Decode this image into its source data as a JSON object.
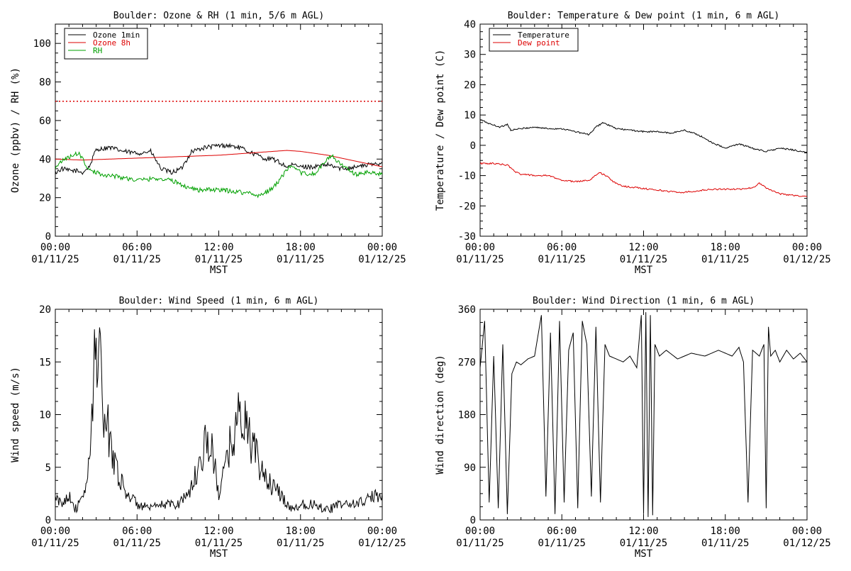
{
  "chart_data": [
    {
      "type": "line",
      "title": "Boulder: Ozone & RH (1 min, 5/6 m AGL)",
      "xlabel": "MST",
      "ylabel": "Ozone (ppbv) / RH (%)",
      "xlim": [
        "2025-01-11 00:00",
        "2025-01-12 00:00"
      ],
      "ylim": [
        0,
        110
      ],
      "xticks": [
        {
          "time": "2025-01-11 00:00",
          "label1": "00:00",
          "label2": "01/11/25"
        },
        {
          "time": "2025-01-11 06:00",
          "label1": "06:00",
          "label2": "01/11/25"
        },
        {
          "time": "2025-01-11 12:00",
          "label1": "12:00",
          "label2": "01/11/25"
        },
        {
          "time": "2025-01-11 18:00",
          "label1": "18:00",
          "label2": "01/11/25"
        },
        {
          "time": "2025-01-12 00:00",
          "label1": "00:00",
          "label2": "01/12/25"
        }
      ],
      "yticks": [
        0,
        20,
        40,
        60,
        80,
        100
      ],
      "legend_position": "top-left",
      "reference_lines": [
        {
          "y": 70,
          "style": "dotted",
          "color": "#dd0000"
        }
      ],
      "series": [
        {
          "name": "Ozone 1min",
          "color": "#000000",
          "x": [
            "2025-01-11 00:00",
            "2025-01-11 00:30",
            "2025-01-11 01:00",
            "2025-01-11 01:30",
            "2025-01-11 02:00",
            "2025-01-11 02:30",
            "2025-01-11 03:00",
            "2025-01-11 04:00",
            "2025-01-11 05:00",
            "2025-01-11 06:00",
            "2025-01-11 07:00",
            "2025-01-11 07:45",
            "2025-01-11 08:30",
            "2025-01-11 09:15",
            "2025-01-11 10:00",
            "2025-01-11 11:00",
            "2025-01-11 12:00",
            "2025-01-11 12:45",
            "2025-01-11 13:30",
            "2025-01-11 14:30",
            "2025-01-11 15:30",
            "2025-01-11 16:00",
            "2025-01-11 16:30",
            "2025-01-11 17:00",
            "2025-01-11 17:30",
            "2025-01-11 18:00",
            "2025-01-11 19:00",
            "2025-01-11 20:00",
            "2025-01-11 21:00",
            "2025-01-11 22:00",
            "2025-01-11 23:00",
            "2025-01-12 00:00"
          ],
          "y": [
            33,
            35,
            34,
            34,
            33,
            36,
            45,
            46,
            44,
            43,
            44,
            35,
            33,
            35,
            44,
            46,
            47,
            47,
            46,
            43,
            40,
            40,
            38,
            36,
            37,
            36,
            36,
            37,
            35,
            36,
            37,
            38
          ]
        },
        {
          "name": "Ozone 8h",
          "color": "#dd0000",
          "x": [
            "2025-01-11 00:00",
            "2025-01-11 02:00",
            "2025-01-11 04:00",
            "2025-01-11 06:00",
            "2025-01-11 08:00",
            "2025-01-11 10:00",
            "2025-01-11 12:00",
            "2025-01-11 14:00",
            "2025-01-11 16:00",
            "2025-01-11 17:00",
            "2025-01-11 18:00",
            "2025-01-11 20:00",
            "2025-01-11 22:00",
            "2025-01-12 00:00"
          ],
          "y": [
            40,
            39.5,
            40,
            40.5,
            41,
            41.5,
            42,
            43,
            44,
            44.5,
            44,
            42,
            39,
            36
          ]
        },
        {
          "name": "RH",
          "color": "#00a000",
          "x": [
            "2025-01-11 00:00",
            "2025-01-11 00:30",
            "2025-01-11 01:15",
            "2025-01-11 01:45",
            "2025-01-11 02:15",
            "2025-01-11 02:30",
            "2025-01-11 03:30",
            "2025-01-11 04:30",
            "2025-01-11 06:00",
            "2025-01-11 07:30",
            "2025-01-11 08:30",
            "2025-01-11 09:30",
            "2025-01-11 10:30",
            "2025-01-11 12:00",
            "2025-01-11 13:30",
            "2025-01-11 14:30",
            "2025-01-11 15:00",
            "2025-01-11 16:00",
            "2025-01-11 16:45",
            "2025-01-11 17:15",
            "2025-01-11 18:00",
            "2025-01-11 19:00",
            "2025-01-11 19:45",
            "2025-01-11 20:15",
            "2025-01-11 21:00",
            "2025-01-11 22:00",
            "2025-01-11 23:00",
            "2025-01-12 00:00"
          ],
          "y": [
            36,
            39,
            42,
            43,
            37,
            34,
            32,
            31,
            29,
            30,
            29,
            26,
            24,
            24,
            23,
            22,
            21,
            25,
            32,
            36,
            33,
            32,
            38,
            42,
            37,
            32,
            33,
            32
          ]
        }
      ]
    },
    {
      "type": "line",
      "title": "Boulder: Temperature & Dew point (1 min, 6 m AGL)",
      "xlabel": "MST",
      "ylabel": "Temperature / Dew point (C)",
      "xlim": [
        "2025-01-11 00:00",
        "2025-01-12 00:00"
      ],
      "ylim": [
        -30,
        40
      ],
      "xticks": [
        {
          "time": "2025-01-11 00:00",
          "label1": "00:00",
          "label2": "01/11/25"
        },
        {
          "time": "2025-01-11 06:00",
          "label1": "06:00",
          "label2": "01/11/25"
        },
        {
          "time": "2025-01-11 12:00",
          "label1": "12:00",
          "label2": "01/11/25"
        },
        {
          "time": "2025-01-11 18:00",
          "label1": "18:00",
          "label2": "01/11/25"
        },
        {
          "time": "2025-01-12 00:00",
          "label1": "00:00",
          "label2": "01/12/25"
        }
      ],
      "yticks": [
        -30,
        -20,
        -10,
        0,
        10,
        20,
        30,
        40
      ],
      "legend_position": "top-left",
      "series": [
        {
          "name": "Temperature",
          "color": "#000000",
          "x": [
            "2025-01-11 00:00",
            "2025-01-11 00:45",
            "2025-01-11 01:30",
            "2025-01-11 02:00",
            "2025-01-11 02:15",
            "2025-01-11 03:00",
            "2025-01-11 04:00",
            "2025-01-11 05:00",
            "2025-01-11 06:00",
            "2025-01-11 07:00",
            "2025-01-11 08:00",
            "2025-01-11 08:30",
            "2025-01-11 09:00",
            "2025-01-11 09:30",
            "2025-01-11 10:00",
            "2025-01-11 11:00",
            "2025-01-11 12:00",
            "2025-01-11 13:00",
            "2025-01-11 14:00",
            "2025-01-11 15:00",
            "2025-01-11 16:00",
            "2025-01-11 17:00",
            "2025-01-11 18:00",
            "2025-01-11 19:00",
            "2025-01-11 20:00",
            "2025-01-11 21:00",
            "2025-01-11 22:00",
            "2025-01-11 23:00",
            "2025-01-12 00:00"
          ],
          "y": [
            8.5,
            7,
            6,
            7,
            5,
            5.5,
            6,
            5.5,
            5.5,
            4.5,
            3.5,
            6,
            7.5,
            6.5,
            5.5,
            5,
            4.5,
            4.5,
            4,
            5,
            3.5,
            1,
            -1,
            0.5,
            -1,
            -2,
            -1,
            -1.5,
            -2.5
          ]
        },
        {
          "name": "Dew point",
          "color": "#dd0000",
          "x": [
            "2025-01-11 00:00",
            "2025-01-11 01:00",
            "2025-01-11 02:00",
            "2025-01-11 02:30",
            "2025-01-11 03:00",
            "2025-01-11 04:00",
            "2025-01-11 05:00",
            "2025-01-11 06:00",
            "2025-01-11 07:00",
            "2025-01-11 08:00",
            "2025-01-11 08:45",
            "2025-01-11 09:15",
            "2025-01-11 09:45",
            "2025-01-11 10:30",
            "2025-01-11 11:30",
            "2025-01-11 12:30",
            "2025-01-11 13:30",
            "2025-01-11 14:30",
            "2025-01-11 15:00",
            "2025-01-11 16:00",
            "2025-01-11 17:00",
            "2025-01-11 18:00",
            "2025-01-11 19:00",
            "2025-01-11 20:00",
            "2025-01-11 20:30",
            "2025-01-11 21:00",
            "2025-01-11 22:00",
            "2025-01-11 23:00",
            "2025-01-12 00:00"
          ],
          "y": [
            -6,
            -6,
            -6.5,
            -8.5,
            -9.5,
            -10,
            -10,
            -11.5,
            -12,
            -11.5,
            -9,
            -10,
            -12,
            -13.5,
            -14,
            -14.5,
            -15,
            -15.5,
            -15.5,
            -15,
            -14.5,
            -14.5,
            -14.5,
            -14,
            -12.5,
            -14,
            -16,
            -16.5,
            -17
          ]
        }
      ]
    },
    {
      "type": "line",
      "title": "Boulder: Wind Speed (1 min, 6 m AGL)",
      "xlabel": "MST",
      "ylabel": "Wind speed (m/s)",
      "xlim": [
        "2025-01-11 00:00",
        "2025-01-12 00:00"
      ],
      "ylim": [
        0,
        20
      ],
      "xticks": [
        {
          "time": "2025-01-11 00:00",
          "label1": "00:00",
          "label2": "01/11/25"
        },
        {
          "time": "2025-01-11 06:00",
          "label1": "06:00",
          "label2": "01/11/25"
        },
        {
          "time": "2025-01-11 12:00",
          "label1": "12:00",
          "label2": "01/11/25"
        },
        {
          "time": "2025-01-11 18:00",
          "label1": "18:00",
          "label2": "01/11/25"
        },
        {
          "time": "2025-01-12 00:00",
          "label1": "00:00",
          "label2": "01/12/25"
        }
      ],
      "yticks": [
        0,
        5,
        10,
        15,
        20
      ],
      "series": [
        {
          "name": "",
          "color": "#000000",
          "x": [
            "2025-01-11 00:00",
            "2025-01-11 00:30",
            "2025-01-11 01:00",
            "2025-01-11 01:30",
            "2025-01-11 02:00",
            "2025-01-11 02:30",
            "2025-01-11 02:45",
            "2025-01-11 03:00",
            "2025-01-11 03:15",
            "2025-01-11 03:30",
            "2025-01-11 04:00",
            "2025-01-11 04:30",
            "2025-01-11 05:00",
            "2025-01-11 06:00",
            "2025-01-11 07:00",
            "2025-01-11 08:00",
            "2025-01-11 09:00",
            "2025-01-11 10:00",
            "2025-01-11 10:30",
            "2025-01-11 11:00",
            "2025-01-11 11:30",
            "2025-01-11 12:00",
            "2025-01-11 12:30",
            "2025-01-11 13:00",
            "2025-01-11 13:30",
            "2025-01-11 14:00",
            "2025-01-11 14:30",
            "2025-01-11 15:00",
            "2025-01-11 15:30",
            "2025-01-11 16:00",
            "2025-01-11 16:30",
            "2025-01-11 17:00",
            "2025-01-11 17:30",
            "2025-01-11 18:00",
            "2025-01-11 19:00",
            "2025-01-11 20:00",
            "2025-01-11 21:00",
            "2025-01-11 22:00",
            "2025-01-11 23:00",
            "2025-01-12 00:00"
          ],
          "y": [
            2,
            1.5,
            2.5,
            1,
            2,
            5,
            12,
            17,
            16,
            10,
            8,
            5,
            3,
            1.5,
            1,
            1.5,
            1.5,
            3,
            5,
            7.5,
            6.5,
            2.5,
            5,
            8,
            10,
            9,
            7,
            5,
            4,
            3,
            2.5,
            1.5,
            1,
            1.5,
            1.5,
            1,
            1.5,
            1.5,
            2,
            2.5
          ]
        }
      ]
    },
    {
      "type": "line",
      "title": "Boulder: Wind Direction (1 min, 6 m AGL)",
      "xlabel": "MST",
      "ylabel": "Wind direction (deg)",
      "xlim": [
        "2025-01-11 00:00",
        "2025-01-12 00:00"
      ],
      "ylim": [
        0,
        360
      ],
      "xticks": [
        {
          "time": "2025-01-11 00:00",
          "label1": "00:00",
          "label2": "01/11/25"
        },
        {
          "time": "2025-01-11 06:00",
          "label1": "06:00",
          "label2": "01/11/25"
        },
        {
          "time": "2025-01-11 12:00",
          "label1": "12:00",
          "label2": "01/11/25"
        },
        {
          "time": "2025-01-11 18:00",
          "label1": "18:00",
          "label2": "01/11/25"
        },
        {
          "time": "2025-01-12 00:00",
          "label1": "00:00",
          "label2": "01/12/25"
        }
      ],
      "yticks": [
        0,
        90,
        180,
        270,
        360
      ],
      "series": [
        {
          "name": "",
          "color": "#000000",
          "x": [
            "2025-01-11 00:00",
            "2025-01-11 00:20",
            "2025-01-11 00:40",
            "2025-01-11 01:00",
            "2025-01-11 01:20",
            "2025-01-11 01:40",
            "2025-01-11 02:00",
            "2025-01-11 02:20",
            "2025-01-11 02:40",
            "2025-01-11 03:00",
            "2025-01-11 03:30",
            "2025-01-11 04:00",
            "2025-01-11 04:30",
            "2025-01-11 04:50",
            "2025-01-11 05:10",
            "2025-01-11 05:30",
            "2025-01-11 05:50",
            "2025-01-11 06:10",
            "2025-01-11 06:30",
            "2025-01-11 06:50",
            "2025-01-11 07:10",
            "2025-01-11 07:30",
            "2025-01-11 07:50",
            "2025-01-11 08:10",
            "2025-01-11 08:30",
            "2025-01-11 08:50",
            "2025-01-11 09:10",
            "2025-01-11 09:30",
            "2025-01-11 10:00",
            "2025-01-11 10:30",
            "2025-01-11 11:00",
            "2025-01-11 11:30",
            "2025-01-11 11:50",
            "2025-01-11 12:00",
            "2025-01-11 12:10",
            "2025-01-11 12:20",
            "2025-01-11 12:30",
            "2025-01-11 12:40",
            "2025-01-11 12:50",
            "2025-01-11 13:10",
            "2025-01-11 13:40",
            "2025-01-11 14:30",
            "2025-01-11 15:30",
            "2025-01-11 16:30",
            "2025-01-11 17:30",
            "2025-01-11 18:30",
            "2025-01-11 19:00",
            "2025-01-11 19:20",
            "2025-01-11 19:40",
            "2025-01-11 20:00",
            "2025-01-11 20:30",
            "2025-01-11 20:50",
            "2025-01-11 21:00",
            "2025-01-11 21:10",
            "2025-01-11 21:20",
            "2025-01-11 21:40",
            "2025-01-11 22:00",
            "2025-01-11 22:30",
            "2025-01-11 23:00",
            "2025-01-11 23:30",
            "2025-01-12 00:00"
          ],
          "y": [
            260,
            340,
            30,
            280,
            20,
            300,
            10,
            250,
            270,
            265,
            275,
            280,
            350,
            40,
            320,
            10,
            340,
            30,
            290,
            320,
            20,
            340,
            300,
            40,
            330,
            30,
            300,
            280,
            275,
            270,
            280,
            260,
            350,
            10,
            355,
            5,
            350,
            8,
            300,
            280,
            290,
            275,
            285,
            280,
            290,
            280,
            295,
            270,
            30,
            290,
            280,
            300,
            20,
            330,
            280,
            290,
            270,
            290,
            275,
            285,
            270
          ]
        }
      ]
    }
  ]
}
